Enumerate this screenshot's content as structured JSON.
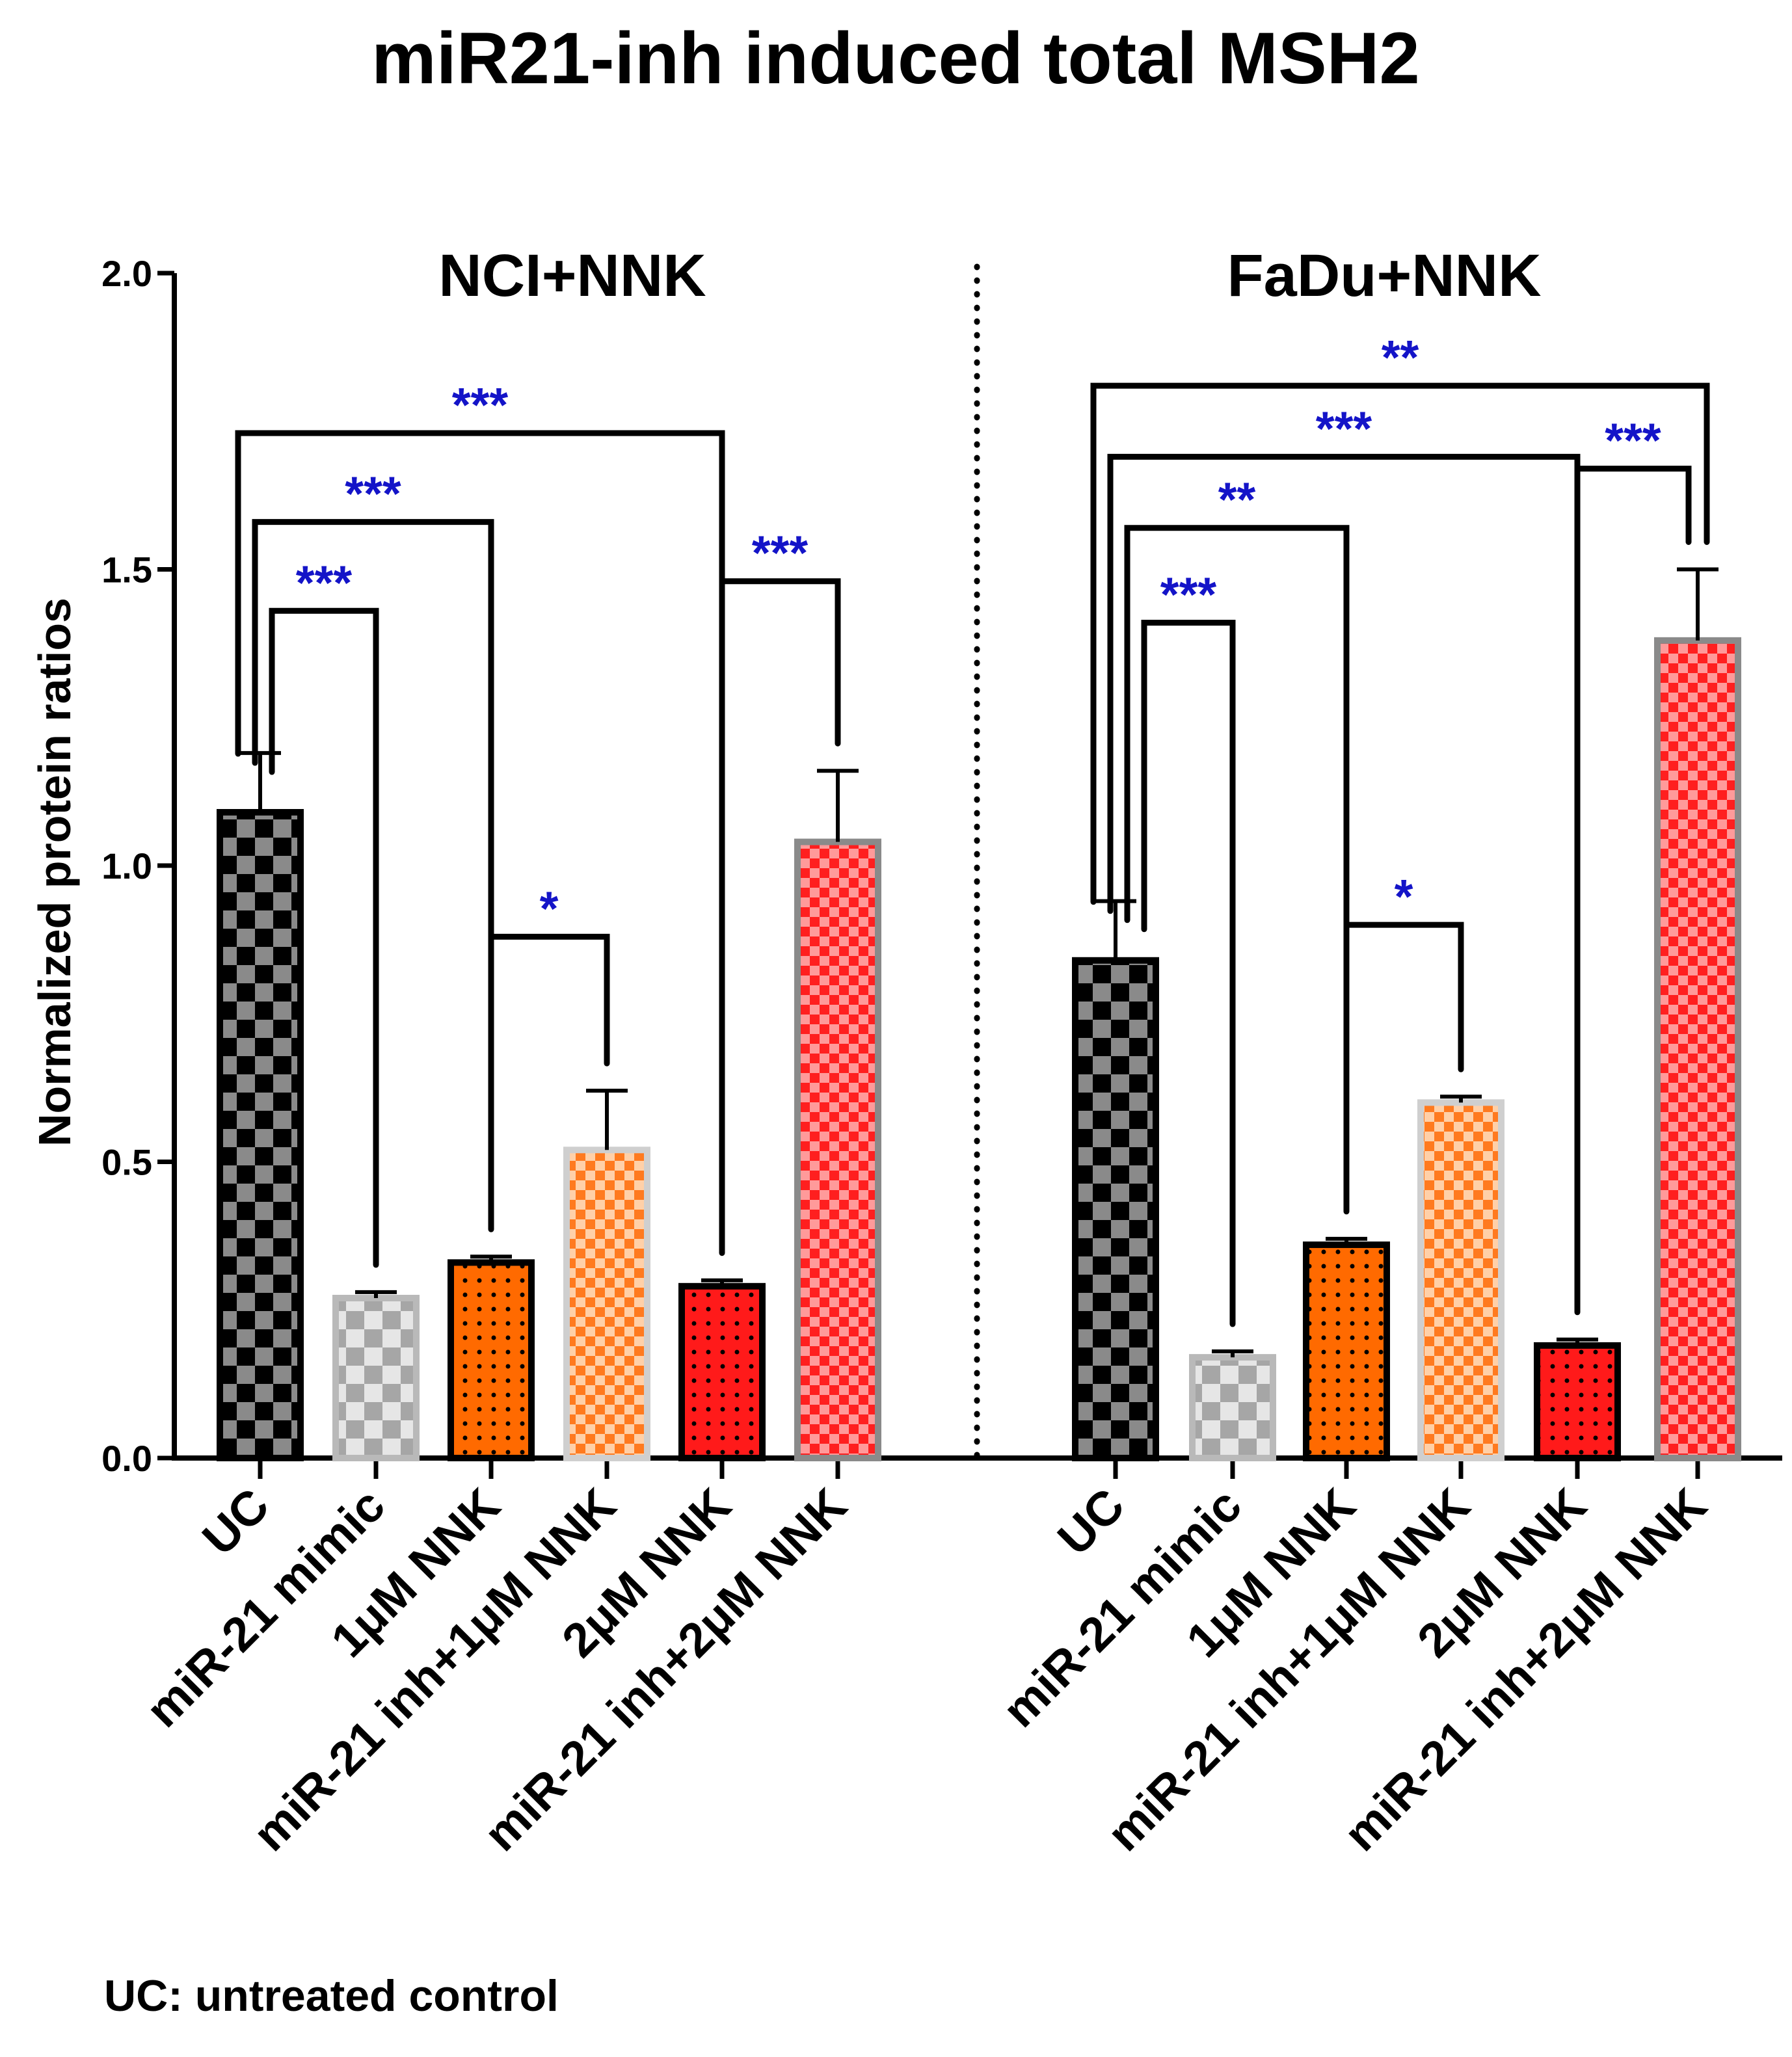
{
  "title": "miR21-inh induced total MSH2",
  "footnote": "UC: untreated control",
  "chart_data": {
    "type": "bar",
    "ylabel": "Normalized protein ratios",
    "xlabel": "",
    "ylim": [
      0,
      2.0
    ],
    "yticks": [
      "0.0",
      "0.5",
      "1.0",
      "1.5",
      "2.0"
    ],
    "grid": false,
    "legend": "none",
    "categories": [
      "UC",
      "miR-21 mimic",
      "1μM NNK",
      "miR-21 inh+1μM NNK",
      "2μM NNK",
      "miR-21 inh+2μM NNK"
    ],
    "panels": [
      {
        "name": "NCI+NNK",
        "values": [
          1.09,
          0.27,
          0.33,
          0.52,
          0.29,
          1.04
        ],
        "errors": [
          0.1,
          0.01,
          0.01,
          0.1,
          0.01,
          0.12
        ],
        "comparisons": [
          {
            "from": 0,
            "to": 1,
            "stars": "***",
            "y": 1.43
          },
          {
            "from": 0,
            "to": 2,
            "stars": "***",
            "y": 1.58
          },
          {
            "from": 0,
            "to": 4,
            "stars": "***",
            "y": 1.73
          },
          {
            "from": 2,
            "to": 3,
            "stars": "*",
            "y": 0.88
          },
          {
            "from": 4,
            "to": 5,
            "stars": "***",
            "y": 1.48
          }
        ]
      },
      {
        "name": "FaDu+NNK",
        "values": [
          0.84,
          0.17,
          0.36,
          0.6,
          0.19,
          1.38
        ],
        "errors": [
          0.1,
          0.01,
          0.01,
          0.01,
          0.01,
          0.12
        ],
        "comparisons": [
          {
            "from": 0,
            "to": 1,
            "stars": "***",
            "y": 1.41
          },
          {
            "from": 0,
            "to": 2,
            "stars": "**",
            "y": 1.57
          },
          {
            "from": 0,
            "to": 4,
            "stars": "***",
            "y": 1.69
          },
          {
            "from": 0,
            "to": 5,
            "stars": "**",
            "y": 1.81
          },
          {
            "from": 2,
            "to": 3,
            "stars": "*",
            "y": 0.9
          },
          {
            "from": 4,
            "to": 5,
            "stars": "***",
            "y": 1.67
          }
        ]
      }
    ],
    "colors": {
      "axis": "#000000",
      "sig": "#1414c8",
      "errorbar": "#000000"
    },
    "bar_styles": [
      {
        "pattern": "checker",
        "fill": "#000000",
        "alt": "#8a8a8a",
        "border": "#000000",
        "pattern_size": "large"
      },
      {
        "pattern": "checker",
        "fill": "#a6a6a6",
        "alt": "#e6e6e6",
        "border": "#b9b9b9",
        "pattern_size": "large"
      },
      {
        "pattern": "dots",
        "fill": "#ff6a00",
        "alt": "#000000",
        "border": "#000000",
        "pattern_size": "dot"
      },
      {
        "pattern": "checker",
        "fill": "#ff7a1f",
        "alt": "#ffd0a8",
        "border": "#cfcfcf",
        "pattern_size": "small"
      },
      {
        "pattern": "dots",
        "fill": "#ff1a1a",
        "alt": "#000000",
        "border": "#000000",
        "pattern_size": "dot"
      },
      {
        "pattern": "checker",
        "fill": "#ff1f1f",
        "alt": "#ff9a9a",
        "border": "#8a8a8a",
        "pattern_size": "small"
      }
    ]
  }
}
